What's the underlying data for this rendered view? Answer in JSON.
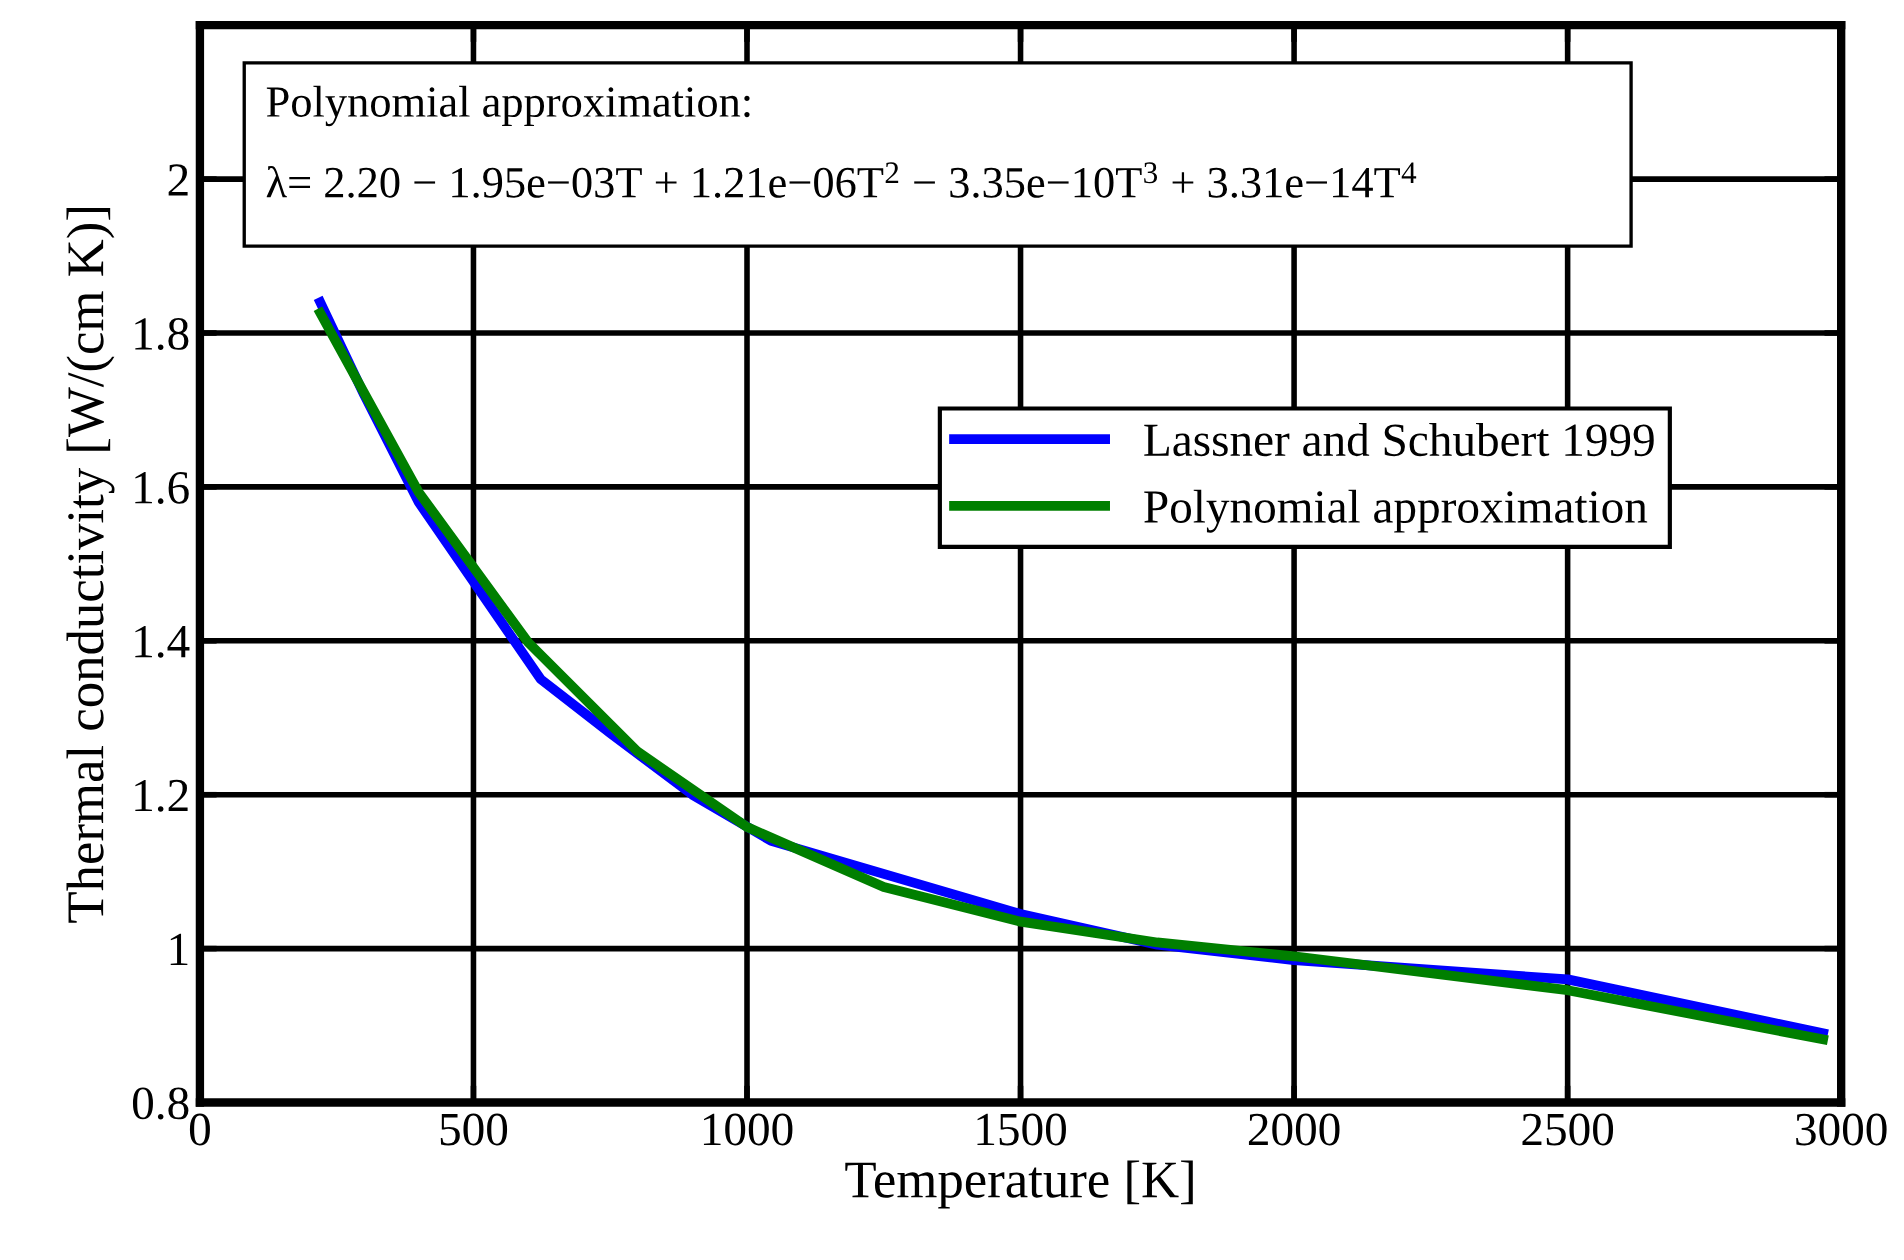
{
  "chart_data": {
    "type": "line",
    "xlabel": "Temperature [K]",
    "ylabel": "Thermal conductivity [W/(cm K)]",
    "annotations": [
      "Polynomial approximation:",
      "λ= 2.20 − 1.95e−03T + 1.21e−06T$^{2}$ − 3.35e−10T$^{3}$ + 3.31e−14T$^{4}$"
    ],
    "series": [
      {
        "name": "Lassner and Schubert 1999",
        "color": "#0000ff",
        "x": [
          220,
          300,
          400,
          623,
          750,
          900,
          1044,
          1500,
          1750,
          2000,
          2500,
          2967
        ],
        "values": [
          1.84,
          1.72,
          1.58,
          1.35,
          1.28,
          1.2,
          1.14,
          1.045,
          1.005,
          0.985,
          0.96,
          0.89
        ]
      },
      {
        "name": "Polynomial approximation",
        "color": "#007f00",
        "x": [
          220,
          400,
          600,
          800,
          1000,
          1250,
          1500,
          1750,
          2000,
          2500,
          2967
        ],
        "values": [
          1.826,
          1.593,
          1.398,
          1.256,
          1.158,
          1.08,
          1.035,
          1.008,
          0.99,
          0.946,
          0.882
        ]
      }
    ],
    "xlim": [
      0,
      3000
    ],
    "xticks": [
      0,
      500,
      1000,
      1500,
      2000,
      2500,
      3000
    ],
    "ylim": [
      0.8,
      2.2
    ],
    "yticks": [
      0.8,
      1,
      1.2,
      1.4,
      1.6,
      1.8,
      2
    ],
    "grid": true,
    "legend": "right",
    "line_style": "solid",
    "marker": "none"
  }
}
